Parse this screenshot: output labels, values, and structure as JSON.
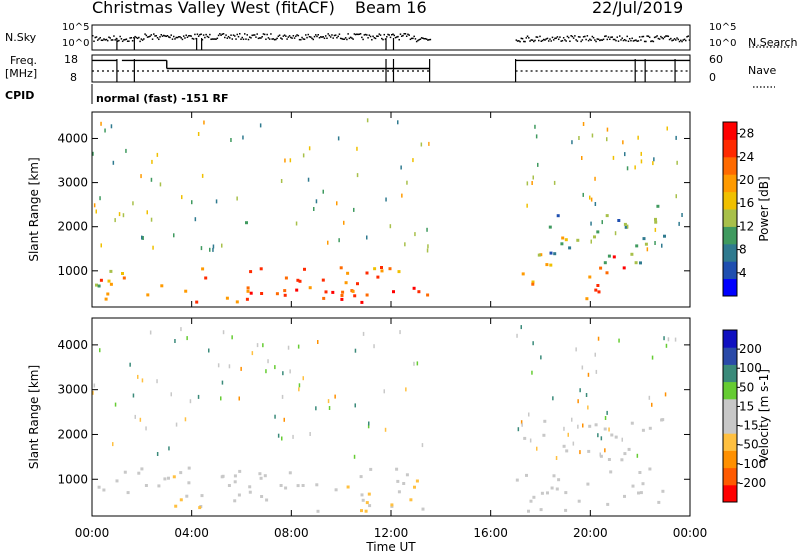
{
  "header": {
    "station": "Christmas Valley West (fitACF)",
    "beam": "Beam 16",
    "date": "22/Jul/2019"
  },
  "noise_panel": {
    "left_label": "N.Sky",
    "left_ticks": [
      "10^5",
      "10^0"
    ],
    "right_ticks": [
      "10^5",
      "10^0"
    ],
    "right_label": "N.Search"
  },
  "freq_panel": {
    "left_label_1": "Freq.",
    "left_label_2": "[MHz]",
    "left_ticks": [
      "18",
      "8"
    ],
    "right_ticks": [
      "60",
      "0"
    ],
    "right_label": "Nave"
  },
  "cpid": {
    "label": "CPID",
    "text": "normal (fast) -151 RF"
  },
  "colors": {
    "power": [
      "#0000ff",
      "#1f4fb0",
      "#2f7a8f",
      "#3f9a5f",
      "#a8c04a",
      "#f0c000",
      "#ff9a00",
      "#ff6a00",
      "#ff2a00",
      "#ff0000"
    ],
    "velocity": [
      "#ff0000",
      "#ff5a00",
      "#ff9000",
      "#ffc040",
      "#c8c8c8",
      "#c8c8c8",
      "#66cc33",
      "#3a8a7a",
      "#2a4aa8",
      "#1010c0"
    ]
  },
  "chart_data": [
    {
      "type": "heatmap",
      "panel": "power",
      "ylabel": "Slant Range [km]",
      "yticks": [
        "1000",
        "2000",
        "3000",
        "4000"
      ],
      "ylim": [
        180,
        4600
      ],
      "colorbar_label": "Power [dB]",
      "colorbar_ticks": [
        "4",
        "8",
        "12",
        "16",
        "20",
        "24",
        "28"
      ],
      "clim": [
        0,
        30
      ],
      "echo_regions": [
        {
          "t0": 0.0,
          "t1": 1.8,
          "r0": 650,
          "r1": 1400,
          "val": 16
        },
        {
          "t0": 0.0,
          "t1": 13.5,
          "r0": 300,
          "r1": 1200,
          "val": 22
        },
        {
          "t0": 6.0,
          "t1": 13.0,
          "r0": 300,
          "r1": 700,
          "val": 26
        },
        {
          "t0": 5.3,
          "t1": 6.3,
          "r0": 2100,
          "r1": 2400,
          "val": 12
        },
        {
          "t0": 13.0,
          "t1": 13.5,
          "r0": 2100,
          "r1": 2300,
          "val": 12
        },
        {
          "t0": 17.0,
          "t1": 19.2,
          "r0": 700,
          "r1": 1800,
          "val": 18
        },
        {
          "t0": 18.0,
          "t1": 23.0,
          "r0": 1200,
          "r1": 2500,
          "val": 10
        },
        {
          "t0": 19.8,
          "t1": 21.8,
          "r0": 250,
          "r1": 1500,
          "val": 24
        }
      ]
    },
    {
      "type": "heatmap",
      "panel": "velocity",
      "ylabel": "Slant Range [km]",
      "yticks": [
        "1000",
        "2000",
        "3000",
        "4000"
      ],
      "ylim": [
        180,
        4600
      ],
      "colorbar_label": "Velocity [m s-1]",
      "colorbar_ticks": [
        "200",
        "100",
        "50",
        "15",
        "-15",
        "-50",
        "-100",
        "-200"
      ],
      "clim": [
        -250,
        250
      ],
      "xlabel": "Time UT",
      "xticks": [
        "00:00",
        "04:00",
        "08:00",
        "12:00",
        "16:00",
        "20:00",
        "00:00"
      ],
      "xlim": [
        0,
        24
      ],
      "echo_regions": [
        {
          "t0": 0.0,
          "t1": 13.5,
          "r0": 300,
          "r1": 1300,
          "val": -5
        },
        {
          "t0": 3.2,
          "t1": 5.0,
          "r0": 400,
          "r1": 1200,
          "val": -60
        },
        {
          "t0": 9.5,
          "t1": 13.0,
          "r0": 300,
          "r1": 1000,
          "val": -70
        },
        {
          "t0": 17.0,
          "t1": 23.0,
          "r0": 300,
          "r1": 2400,
          "val": -5
        }
      ]
    }
  ]
}
